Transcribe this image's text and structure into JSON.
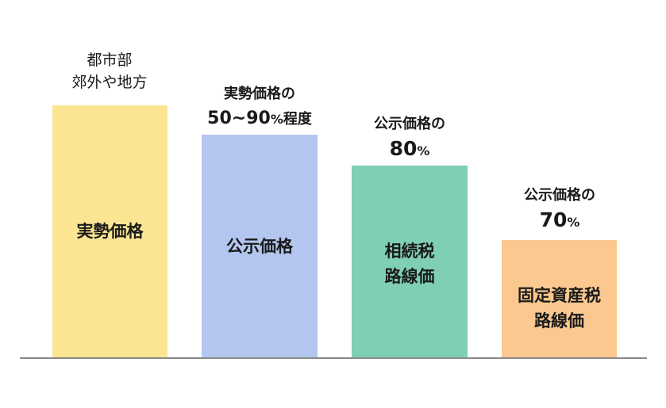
{
  "bars": [
    {
      "label": "実勢価格",
      "color": "#fbe593",
      "top_line1": "都市部",
      "top_line2": "郊外や地方"
    },
    {
      "label": "公示価格",
      "color": "#b3c6ef",
      "top_line1": "実勢価格の",
      "top_line2": "50~90",
      "top_line2_unit": "%",
      "top_line2_suffix": "程度"
    },
    {
      "label": "相続税\n路線価",
      "color": "#7ecfb6",
      "top_line1": "公示価格の",
      "top_line2": "80",
      "top_line2_unit": "%"
    },
    {
      "label": "固定資産税\n路線価",
      "color": "#fbc88f",
      "top_line1": "公示価格の",
      "top_line2": "70",
      "top_line2_unit": "%"
    }
  ],
  "baseline_color": "#8a8a8a"
}
